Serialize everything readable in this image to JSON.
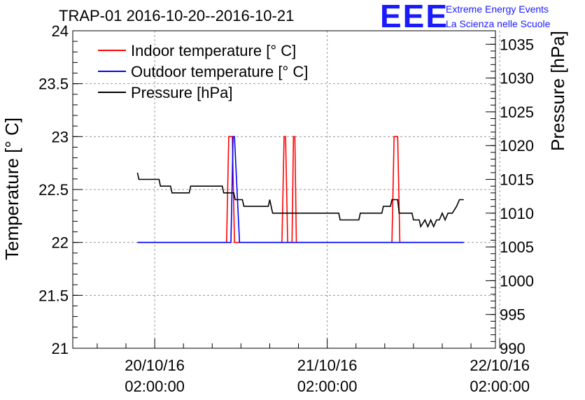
{
  "chart_data": {
    "type": "line",
    "title": "TRAP-01 2016-10-20--2016-10-21",
    "ylabel": "Temperature [° C]",
    "y2label": "Pressure [hPa]",
    "ylim": [
      21,
      24
    ],
    "y2lim": [
      990,
      1037
    ],
    "y_ticks": [
      "21",
      "21.5",
      "22",
      "22.5",
      "23",
      "23.5",
      "24"
    ],
    "y2_ticks": [
      "990",
      "995",
      "1000",
      "1005",
      "1010",
      "1015",
      "1020",
      "1025",
      "1030",
      "1035"
    ],
    "xlim_hours_from_2016_10_20_02h": [
      -5.7,
      23.7
    ],
    "x_ticks": [
      {
        "hours": 0,
        "date": "20/10/16",
        "time": "02:00:00"
      },
      {
        "hours": 12,
        "date": "21/10/16",
        "time": "02:00:00"
      },
      {
        "hours": 24,
        "date": "22/10/16",
        "time": "02:00:00"
      }
    ],
    "grid": true,
    "legend": "top-left",
    "series": [
      {
        "name": "Indoor temperature [° C]",
        "color": "#ff0000",
        "axis": "left",
        "x": [
          -1.2,
          5.0,
          5.15,
          5.25,
          5.4,
          5.55,
          8.85,
          9.0,
          9.1,
          9.25,
          9.55,
          9.65,
          9.75,
          9.85,
          16.5,
          16.65,
          16.75,
          16.9,
          17.05,
          21.5
        ],
        "y": [
          22,
          22,
          23,
          23,
          23,
          22,
          22,
          23,
          23,
          22,
          22,
          23,
          23,
          22,
          22,
          23,
          23,
          23,
          22,
          22
        ]
      },
      {
        "name": "Outdoor temperature [° C]",
        "color": "#0000ff",
        "axis": "left",
        "x": [
          -1.2,
          5.3,
          5.45,
          5.55,
          5.9,
          21.5
        ],
        "y": [
          22,
          22,
          23,
          23,
          22,
          22
        ]
      },
      {
        "name": "Pressure [hPa]",
        "color": "#000000",
        "axis": "right",
        "x": [
          -1.2,
          -1.1,
          0.3,
          0.4,
          1.1,
          1.2,
          2.4,
          2.5,
          4.7,
          4.8,
          5.5,
          5.6,
          6.1,
          6.2,
          7.9,
          8.0,
          8.1,
          8.2,
          8.35,
          8.4,
          12.8,
          12.9,
          14.2,
          14.3,
          15.8,
          15.9,
          16.4,
          16.5,
          16.9,
          17.0,
          17.9,
          18.0,
          18.4,
          18.5,
          18.8,
          19.0,
          19.2,
          19.4,
          19.6,
          19.8,
          20.0,
          20.2,
          20.4,
          20.5,
          20.7,
          21.0,
          21.2,
          21.5
        ],
        "y": [
          1016,
          1015,
          1015,
          1014,
          1014,
          1013,
          1013,
          1014,
          1014,
          1013,
          1013,
          1012,
          1012,
          1011,
          1011,
          1012,
          1011,
          1010,
          1010,
          1010,
          1010,
          1009,
          1009,
          1010,
          1010,
          1011,
          1011,
          1012,
          1012,
          1010,
          1010,
          1009,
          1009,
          1008,
          1009,
          1008,
          1009,
          1008,
          1009,
          1009,
          1010,
          1009,
          1010,
          1010,
          1010,
          1011,
          1012,
          1012
        ]
      }
    ]
  },
  "logo": {
    "letters": "EEE",
    "line1": "Extreme Energy Events",
    "line2": "La Scienza nelle Scuole",
    "color": "#1a1aff"
  }
}
